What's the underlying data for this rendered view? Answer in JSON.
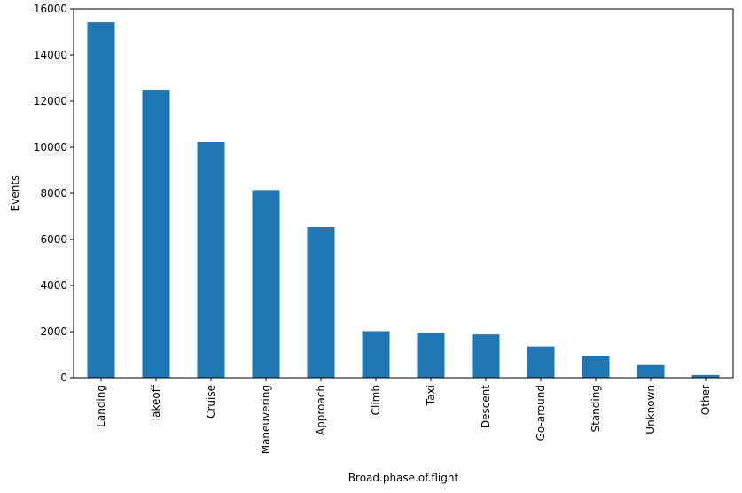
{
  "chart_data": {
    "type": "bar",
    "categories": [
      "Landing",
      "Takeoff",
      "Cruise",
      "Maneuvering",
      "Approach",
      "Climb",
      "Taxi",
      "Descent",
      "Go-around",
      "Standing",
      "Unknown",
      "Other"
    ],
    "values": [
      15420,
      12490,
      10230,
      8140,
      6540,
      2020,
      1950,
      1880,
      1360,
      930,
      550,
      120
    ],
    "title": "",
    "xlabel": "Broad.phase.of.flight",
    "ylabel": "Events",
    "ylim": [
      0,
      16000
    ],
    "yticks": [
      0,
      2000,
      4000,
      6000,
      8000,
      10000,
      12000,
      14000,
      16000
    ],
    "grid": false,
    "bar_color": "#1f77b4"
  }
}
